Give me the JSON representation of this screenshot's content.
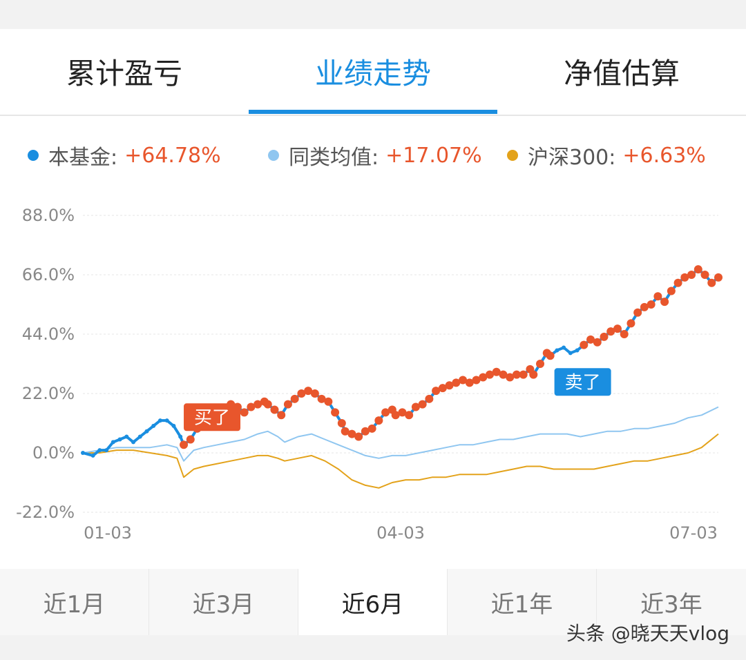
{
  "tabs": [
    {
      "label": "累计盈亏",
      "active": false
    },
    {
      "label": "业绩走势",
      "active": true
    },
    {
      "label": "净值估算",
      "active": false
    }
  ],
  "legend": [
    {
      "name": "本基金:",
      "value": "+64.78%",
      "color": "#1a8ee0"
    },
    {
      "name": "同类均值:",
      "value": "+17.07%",
      "color": "#8fc6f0"
    },
    {
      "name": "沪深300:",
      "value": "+6.63%",
      "color": "#e3a21a"
    }
  ],
  "tags": {
    "buy": "买了",
    "sell": "卖了"
  },
  "colors": {
    "accent": "#1a8ee0",
    "marker": "#e8562c",
    "fund": "#1a8ee0",
    "peer": "#8fc6f0",
    "index": "#e3a21a"
  },
  "chart_data": {
    "type": "line",
    "x_labels": [
      "01-03",
      "04-03",
      "07-03"
    ],
    "y_ticks": [
      "88.0%",
      "66.0%",
      "44.0%",
      "22.0%",
      "0.0%",
      "-22.0%"
    ],
    "ylim": [
      -22,
      88
    ],
    "series": [
      {
        "name": "本基金",
        "values": [
          [
            0,
            0
          ],
          [
            3,
            -1
          ],
          [
            5,
            1
          ],
          [
            7,
            1
          ],
          [
            9,
            4
          ],
          [
            11,
            5
          ],
          [
            13,
            6
          ],
          [
            15,
            4
          ],
          [
            17,
            6
          ],
          [
            19,
            8
          ],
          [
            21,
            10
          ],
          [
            23,
            12
          ],
          [
            25,
            12
          ],
          [
            27,
            10
          ],
          [
            29,
            6
          ],
          [
            30,
            3
          ],
          [
            32,
            5
          ],
          [
            34,
            9
          ],
          [
            36,
            12
          ],
          [
            38,
            14
          ],
          [
            40,
            15
          ],
          [
            42,
            15
          ],
          [
            44,
            18
          ],
          [
            46,
            17
          ],
          [
            48,
            15
          ],
          [
            50,
            17
          ],
          [
            52,
            18
          ],
          [
            54,
            19
          ],
          [
            55,
            18
          ],
          [
            57,
            16
          ],
          [
            59,
            14
          ],
          [
            61,
            18
          ],
          [
            63,
            20
          ],
          [
            65,
            22
          ],
          [
            67,
            23
          ],
          [
            69,
            22
          ],
          [
            71,
            20
          ],
          [
            73,
            19
          ],
          [
            75,
            15
          ],
          [
            77,
            11
          ],
          [
            78,
            8
          ],
          [
            80,
            7
          ],
          [
            82,
            6
          ],
          [
            84,
            8
          ],
          [
            86,
            9
          ],
          [
            88,
            12
          ],
          [
            90,
            15
          ],
          [
            92,
            16
          ],
          [
            93,
            14
          ],
          [
            95,
            15
          ],
          [
            97,
            14
          ],
          [
            99,
            17
          ],
          [
            101,
            18
          ],
          [
            103,
            20
          ],
          [
            105,
            23
          ],
          [
            107,
            24
          ],
          [
            109,
            25
          ],
          [
            111,
            26
          ],
          [
            113,
            27
          ],
          [
            115,
            26
          ],
          [
            117,
            27
          ],
          [
            119,
            28
          ],
          [
            121,
            29
          ],
          [
            123,
            30
          ],
          [
            125,
            29
          ],
          [
            127,
            28
          ],
          [
            129,
            29
          ],
          [
            131,
            29
          ],
          [
            133,
            31
          ],
          [
            134,
            29
          ],
          [
            136,
            33
          ],
          [
            138,
            37
          ],
          [
            139,
            36
          ],
          [
            141,
            38
          ],
          [
            143,
            39
          ],
          [
            145,
            37
          ],
          [
            147,
            38
          ],
          [
            149,
            40
          ],
          [
            151,
            42
          ],
          [
            153,
            41
          ],
          [
            155,
            43
          ],
          [
            157,
            45
          ],
          [
            159,
            46
          ],
          [
            161,
            44
          ],
          [
            163,
            48
          ],
          [
            165,
            52
          ],
          [
            167,
            54
          ],
          [
            169,
            55
          ],
          [
            171,
            58
          ],
          [
            173,
            56
          ],
          [
            175,
            60
          ],
          [
            177,
            63
          ],
          [
            179,
            65
          ],
          [
            181,
            66
          ],
          [
            183,
            68
          ],
          [
            185,
            66
          ],
          [
            187,
            63
          ],
          [
            189,
            65
          ]
        ]
      },
      {
        "name": "同类均值",
        "values": [
          [
            0,
            0
          ],
          [
            5,
            1
          ],
          [
            10,
            2
          ],
          [
            15,
            2
          ],
          [
            20,
            2
          ],
          [
            25,
            3
          ],
          [
            28,
            2
          ],
          [
            30,
            -3
          ],
          [
            33,
            1
          ],
          [
            36,
            2
          ],
          [
            40,
            3
          ],
          [
            44,
            4
          ],
          [
            48,
            5
          ],
          [
            52,
            7
          ],
          [
            55,
            8
          ],
          [
            58,
            6
          ],
          [
            60,
            4
          ],
          [
            64,
            6
          ],
          [
            68,
            7
          ],
          [
            72,
            5
          ],
          [
            76,
            3
          ],
          [
            80,
            1
          ],
          [
            84,
            -1
          ],
          [
            88,
            -2
          ],
          [
            92,
            -1
          ],
          [
            96,
            -1
          ],
          [
            100,
            0
          ],
          [
            104,
            1
          ],
          [
            108,
            2
          ],
          [
            112,
            3
          ],
          [
            116,
            3
          ],
          [
            120,
            4
          ],
          [
            124,
            5
          ],
          [
            128,
            5
          ],
          [
            132,
            6
          ],
          [
            136,
            7
          ],
          [
            140,
            7
          ],
          [
            144,
            7
          ],
          [
            148,
            6
          ],
          [
            152,
            7
          ],
          [
            156,
            8
          ],
          [
            160,
            8
          ],
          [
            164,
            9
          ],
          [
            168,
            9
          ],
          [
            172,
            10
          ],
          [
            176,
            11
          ],
          [
            180,
            13
          ],
          [
            184,
            14
          ],
          [
            189,
            17
          ]
        ]
      },
      {
        "name": "沪深300",
        "values": [
          [
            0,
            0
          ],
          [
            5,
            0
          ],
          [
            10,
            1
          ],
          [
            15,
            1
          ],
          [
            20,
            0
          ],
          [
            25,
            -1
          ],
          [
            28,
            -2
          ],
          [
            30,
            -9
          ],
          [
            33,
            -6
          ],
          [
            36,
            -5
          ],
          [
            40,
            -4
          ],
          [
            44,
            -3
          ],
          [
            48,
            -2
          ],
          [
            52,
            -1
          ],
          [
            55,
            -1
          ],
          [
            58,
            -2
          ],
          [
            60,
            -3
          ],
          [
            64,
            -2
          ],
          [
            68,
            -1
          ],
          [
            72,
            -3
          ],
          [
            76,
            -6
          ],
          [
            80,
            -10
          ],
          [
            84,
            -12
          ],
          [
            88,
            -13
          ],
          [
            92,
            -11
          ],
          [
            96,
            -10
          ],
          [
            100,
            -10
          ],
          [
            104,
            -9
          ],
          [
            108,
            -9
          ],
          [
            112,
            -8
          ],
          [
            116,
            -8
          ],
          [
            120,
            -8
          ],
          [
            124,
            -7
          ],
          [
            128,
            -6
          ],
          [
            132,
            -5
          ],
          [
            136,
            -5
          ],
          [
            140,
            -6
          ],
          [
            144,
            -6
          ],
          [
            148,
            -6
          ],
          [
            152,
            -6
          ],
          [
            156,
            -5
          ],
          [
            160,
            -4
          ],
          [
            164,
            -3
          ],
          [
            168,
            -3
          ],
          [
            172,
            -2
          ],
          [
            176,
            -1
          ],
          [
            180,
            0
          ],
          [
            184,
            2
          ],
          [
            189,
            7
          ]
        ]
      }
    ],
    "annotations": [
      {
        "label": "买了",
        "x": 30,
        "y": 3
      },
      {
        "label": "卖了",
        "x": 139,
        "y": 36
      }
    ]
  },
  "ranges": [
    {
      "label": "近1月",
      "active": false
    },
    {
      "label": "近3月",
      "active": false
    },
    {
      "label": "近6月",
      "active": true
    },
    {
      "label": "近1年",
      "active": false
    },
    {
      "label": "近3年",
      "active": false
    }
  ],
  "watermark": "头条 @晓天天vlog"
}
